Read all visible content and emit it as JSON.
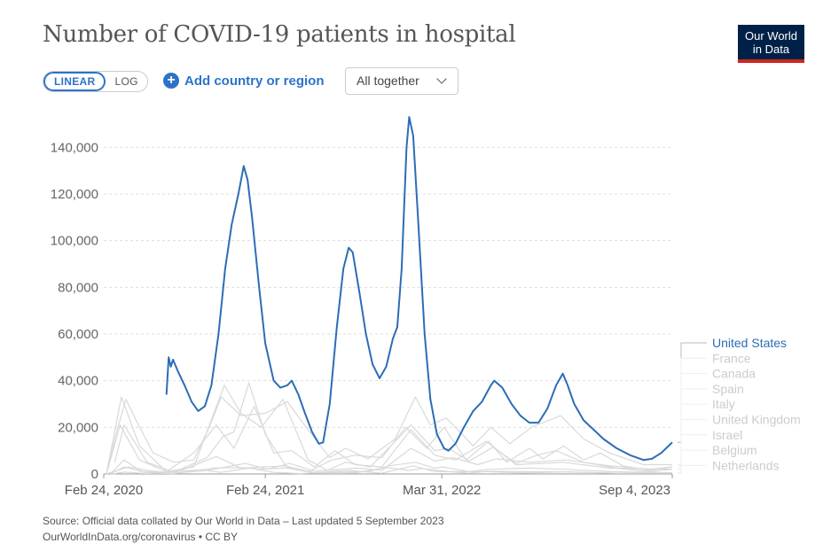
{
  "title": "Number of COVID-19 patients in hospital",
  "logo": {
    "line1": "Our World",
    "line2": "in Data"
  },
  "scale_toggle": {
    "linear": "LINEAR",
    "log": "LOG",
    "selected": "linear"
  },
  "add_button": {
    "label": "Add country or region",
    "icon": "plus-circle-icon"
  },
  "dropdown": {
    "value": "All together",
    "icon": "chevron-down-icon"
  },
  "source": {
    "line1": "Source: Official data collated by Our World in Data – Last updated 5 September 2023",
    "line2": "OurWorldInData.org/coronavirus • CC BY"
  },
  "colors": {
    "highlight": "#2c6db5",
    "muted": "#d9d9d9",
    "grid": "#dddddd",
    "text": "#666666"
  },
  "chart_data": {
    "type": "line",
    "title": "Number of COVID-19 patients in hospital",
    "xlabel": "",
    "ylabel": "",
    "x_range": [
      "2020-02-24",
      "2023-09-04"
    ],
    "ylim": [
      0,
      150000
    ],
    "y_ticks": [
      0,
      20000,
      40000,
      60000,
      80000,
      100000,
      120000,
      140000
    ],
    "y_tick_labels": [
      "0",
      "20,000",
      "40,000",
      "60,000",
      "80,000",
      "100,000",
      "120,000",
      "140,000"
    ],
    "x_ticks": [
      "2020-02-24",
      "2021-02-24",
      "2022-03-31",
      "2023-09-04"
    ],
    "x_tick_labels": [
      "Feb 24, 2020",
      "Feb 24, 2021",
      "Mar 31, 2022",
      "Sep 4, 2023"
    ],
    "grid": "horizontal-dashed",
    "legend": "right",
    "highlighted_series": "United States",
    "series": [
      {
        "name": "United States",
        "points": [
          [
            "2020-07-15",
            34000
          ],
          [
            "2020-07-20",
            50000
          ],
          [
            "2020-07-25",
            46000
          ],
          [
            "2020-07-30",
            49000
          ],
          [
            "2020-08-10",
            44000
          ],
          [
            "2020-08-25",
            38000
          ],
          [
            "2020-09-10",
            31000
          ],
          [
            "2020-09-25",
            27000
          ],
          [
            "2020-10-10",
            29000
          ],
          [
            "2020-10-25",
            38000
          ],
          [
            "2020-11-10",
            60000
          ],
          [
            "2020-11-25",
            88000
          ],
          [
            "2020-12-10",
            107000
          ],
          [
            "2020-12-25",
            120000
          ],
          [
            "2021-01-06",
            132000
          ],
          [
            "2021-01-15",
            126000
          ],
          [
            "2021-01-25",
            110000
          ],
          [
            "2021-02-10",
            80000
          ],
          [
            "2021-02-24",
            56000
          ],
          [
            "2021-03-15",
            40000
          ],
          [
            "2021-03-30",
            37000
          ],
          [
            "2021-04-15",
            38000
          ],
          [
            "2021-04-25",
            40000
          ],
          [
            "2021-05-10",
            34000
          ],
          [
            "2021-05-25",
            26000
          ],
          [
            "2021-06-10",
            18000
          ],
          [
            "2021-06-25",
            13000
          ],
          [
            "2021-07-05",
            13500
          ],
          [
            "2021-07-20",
            30000
          ],
          [
            "2021-08-05",
            63000
          ],
          [
            "2021-08-20",
            88000
          ],
          [
            "2021-09-01",
            97000
          ],
          [
            "2021-09-10",
            95000
          ],
          [
            "2021-09-25",
            78000
          ],
          [
            "2021-10-10",
            60000
          ],
          [
            "2021-10-25",
            47000
          ],
          [
            "2021-11-10",
            41000
          ],
          [
            "2021-11-25",
            46000
          ],
          [
            "2021-12-10",
            58000
          ],
          [
            "2021-12-20",
            63000
          ],
          [
            "2021-12-30",
            88000
          ],
          [
            "2022-01-10",
            140000
          ],
          [
            "2022-01-16",
            153000
          ],
          [
            "2022-01-25",
            145000
          ],
          [
            "2022-02-05",
            110000
          ],
          [
            "2022-02-20",
            60000
          ],
          [
            "2022-03-05",
            32000
          ],
          [
            "2022-03-20",
            17000
          ],
          [
            "2022-04-05",
            11000
          ],
          [
            "2022-04-15",
            10000
          ],
          [
            "2022-05-01",
            13000
          ],
          [
            "2022-05-20",
            20000
          ],
          [
            "2022-06-10",
            27000
          ],
          [
            "2022-06-30",
            31000
          ],
          [
            "2022-07-20",
            38000
          ],
          [
            "2022-07-28",
            40000
          ],
          [
            "2022-08-15",
            37000
          ],
          [
            "2022-09-05",
            30000
          ],
          [
            "2022-09-25",
            25000
          ],
          [
            "2022-10-15",
            22000
          ],
          [
            "2022-11-05",
            22000
          ],
          [
            "2022-11-25",
            28000
          ],
          [
            "2022-12-15",
            38000
          ],
          [
            "2022-12-30",
            43000
          ],
          [
            "2023-01-10",
            38000
          ],
          [
            "2023-01-25",
            30000
          ],
          [
            "2023-02-15",
            23000
          ],
          [
            "2023-03-10",
            19000
          ],
          [
            "2023-04-01",
            15000
          ],
          [
            "2023-05-01",
            11000
          ],
          [
            "2023-06-01",
            8000
          ],
          [
            "2023-07-01",
            6000
          ],
          [
            "2023-07-20",
            6500
          ],
          [
            "2023-08-10",
            9000
          ],
          [
            "2023-09-04",
            13500
          ]
        ]
      },
      {
        "name": "France",
        "points": [
          [
            "2020-03-01",
            0
          ],
          [
            "2020-03-20",
            15000
          ],
          [
            "2020-04-14",
            32000
          ],
          [
            "2020-05-10",
            22000
          ],
          [
            "2020-06-15",
            9000
          ],
          [
            "2020-08-01",
            5000
          ],
          [
            "2020-09-15",
            6000
          ],
          [
            "2020-10-20",
            20000
          ],
          [
            "2020-11-16",
            33000
          ],
          [
            "2020-12-31",
            25000
          ],
          [
            "2021-02-24",
            26000
          ],
          [
            "2021-04-15",
            31000
          ],
          [
            "2021-05-20",
            22000
          ],
          [
            "2021-07-20",
            7000
          ],
          [
            "2021-08-25",
            11000
          ],
          [
            "2021-10-15",
            6500
          ],
          [
            "2021-12-15",
            15000
          ],
          [
            "2022-01-30",
            33000
          ],
          [
            "2022-03-05",
            21000
          ],
          [
            "2022-04-10",
            24000
          ],
          [
            "2022-06-10",
            12000
          ],
          [
            "2022-07-20",
            20000
          ],
          [
            "2022-09-01",
            13000
          ],
          [
            "2022-10-20",
            20000
          ],
          [
            "2022-12-25",
            25000
          ],
          [
            "2023-02-15",
            15000
          ],
          [
            "2023-04-15",
            9000
          ],
          [
            "2023-06-30",
            4000
          ],
          [
            "2023-09-04",
            4000
          ]
        ]
      },
      {
        "name": "Canada",
        "points": [
          [
            "2020-03-01",
            0
          ],
          [
            "2020-04-20",
            3000
          ],
          [
            "2020-06-01",
            1500
          ],
          [
            "2020-08-01",
            300
          ],
          [
            "2020-10-15",
            1500
          ],
          [
            "2021-01-10",
            4500
          ],
          [
            "2021-03-01",
            2000
          ],
          [
            "2021-04-20",
            4500
          ],
          [
            "2021-06-15",
            1200
          ],
          [
            "2021-09-20",
            2500
          ],
          [
            "2021-11-15",
            1500
          ],
          [
            "2022-01-20",
            11000
          ],
          [
            "2022-03-15",
            5500
          ],
          [
            "2022-04-25",
            7000
          ],
          [
            "2022-06-20",
            4000
          ],
          [
            "2022-08-01",
            6500
          ],
          [
            "2022-10-15",
            5000
          ],
          [
            "2023-01-05",
            6000
          ],
          [
            "2023-04-15",
            3500
          ],
          [
            "2023-07-15",
            2000
          ],
          [
            "2023-09-04",
            3000
          ]
        ]
      },
      {
        "name": "Spain",
        "points": [
          [
            "2020-03-01",
            0
          ],
          [
            "2020-04-01",
            21000
          ],
          [
            "2020-05-15",
            6000
          ],
          [
            "2020-07-15",
            1000
          ],
          [
            "2020-09-15",
            9000
          ],
          [
            "2020-11-05",
            21000
          ],
          [
            "2020-12-15",
            11000
          ],
          [
            "2021-01-30",
            29000
          ],
          [
            "2021-03-15",
            9000
          ],
          [
            "2021-04-25",
            10000
          ],
          [
            "2021-06-15",
            3000
          ],
          [
            "2021-08-01",
            10000
          ],
          [
            "2021-09-15",
            4000
          ],
          [
            "2021-11-15",
            3000
          ],
          [
            "2022-01-20",
            19000
          ],
          [
            "2022-03-15",
            8000
          ],
          [
            "2022-05-01",
            6000
          ],
          [
            "2022-07-10",
            14000
          ],
          [
            "2022-09-15",
            4000
          ],
          [
            "2022-12-31",
            5000
          ],
          [
            "2023-04-15",
            2500
          ],
          [
            "2023-09-04",
            2000
          ]
        ]
      },
      {
        "name": "Italy",
        "points": [
          [
            "2020-03-01",
            0
          ],
          [
            "2020-04-04",
            33000
          ],
          [
            "2020-05-15",
            12000
          ],
          [
            "2020-07-15",
            1000
          ],
          [
            "2020-09-15",
            3000
          ],
          [
            "2020-11-23",
            38000
          ],
          [
            "2020-12-31",
            26000
          ],
          [
            "2021-02-15",
            20000
          ],
          [
            "2021-04-05",
            32000
          ],
          [
            "2021-06-01",
            6000
          ],
          [
            "2021-07-15",
            1500
          ],
          [
            "2021-08-25",
            5000
          ],
          [
            "2021-10-20",
            3000
          ],
          [
            "2022-01-20",
            21000
          ],
          [
            "2022-03-15",
            10000
          ],
          [
            "2022-04-15",
            11000
          ],
          [
            "2022-06-01",
            5500
          ],
          [
            "2022-07-25",
            11500
          ],
          [
            "2022-09-15",
            4500
          ],
          [
            "2022-11-01",
            8000
          ],
          [
            "2022-12-15",
            10000
          ],
          [
            "2023-02-15",
            5000
          ],
          [
            "2023-05-01",
            2500
          ],
          [
            "2023-07-15",
            1000
          ],
          [
            "2023-09-04",
            2000
          ]
        ]
      },
      {
        "name": "United Kingdom",
        "points": [
          [
            "2020-03-20",
            5000
          ],
          [
            "2020-04-10",
            21000
          ],
          [
            "2020-06-01",
            5000
          ],
          [
            "2020-08-01",
            800
          ],
          [
            "2020-10-15",
            7000
          ],
          [
            "2020-11-20",
            16000
          ],
          [
            "2020-12-15",
            18000
          ],
          [
            "2021-01-18",
            39000
          ],
          [
            "2021-02-24",
            17000
          ],
          [
            "2021-04-15",
            2500
          ],
          [
            "2021-06-01",
            900
          ],
          [
            "2021-07-25",
            6000
          ],
          [
            "2021-09-15",
            8000
          ],
          [
            "2021-11-15",
            7000
          ],
          [
            "2022-01-08",
            20000
          ],
          [
            "2022-02-25",
            11000
          ],
          [
            "2022-04-05",
            20000
          ],
          [
            "2022-05-25",
            6000
          ],
          [
            "2022-07-15",
            14000
          ],
          [
            "2022-08-25",
            5000
          ],
          [
            "2022-10-15",
            11000
          ],
          [
            "2022-11-15",
            6500
          ],
          [
            "2023-01-01",
            12000
          ],
          [
            "2023-02-15",
            6000
          ],
          [
            "2023-03-25",
            9000
          ],
          [
            "2023-05-15",
            3500
          ],
          [
            "2023-07-15",
            1500
          ],
          [
            "2023-09-04",
            3000
          ]
        ]
      },
      {
        "name": "Israel",
        "points": [
          [
            "2020-03-15",
            0
          ],
          [
            "2020-04-10",
            800
          ],
          [
            "2020-06-01",
            100
          ],
          [
            "2020-07-20",
            900
          ],
          [
            "2020-10-01",
            1800
          ],
          [
            "2020-11-15",
            700
          ],
          [
            "2021-01-20",
            2500
          ],
          [
            "2021-03-15",
            700
          ],
          [
            "2021-05-15",
            150
          ],
          [
            "2021-09-01",
            1500
          ],
          [
            "2021-11-15",
            300
          ],
          [
            "2022-01-25",
            3500
          ],
          [
            "2022-03-15",
            1000
          ],
          [
            "2022-07-10",
            1000
          ],
          [
            "2022-10-01",
            400
          ],
          [
            "2023-01-10",
            900
          ],
          [
            "2023-05-01",
            300
          ],
          [
            "2023-09-04",
            500
          ]
        ]
      },
      {
        "name": "Belgium",
        "points": [
          [
            "2020-03-10",
            0
          ],
          [
            "2020-04-10",
            6000
          ],
          [
            "2020-05-20",
            1000
          ],
          [
            "2020-08-01",
            300
          ],
          [
            "2020-11-05",
            7500
          ],
          [
            "2020-12-31",
            2500
          ],
          [
            "2021-04-10",
            3500
          ],
          [
            "2021-06-15",
            500
          ],
          [
            "2021-10-15",
            1000
          ],
          [
            "2021-12-01",
            3500
          ],
          [
            "2022-01-30",
            5000
          ],
          [
            "2022-03-15",
            2500
          ],
          [
            "2022-04-01",
            3000
          ],
          [
            "2022-06-01",
            1000
          ],
          [
            "2022-07-15",
            2000
          ],
          [
            "2022-10-15",
            2500
          ],
          [
            "2022-12-31",
            2000
          ],
          [
            "2023-04-15",
            1000
          ],
          [
            "2023-09-04",
            500
          ]
        ]
      },
      {
        "name": "Netherlands",
        "points": [
          [
            "2020-03-10",
            0
          ],
          [
            "2020-04-10",
            3000
          ],
          [
            "2020-06-01",
            400
          ],
          [
            "2020-08-01",
            100
          ],
          [
            "2020-11-01",
            2600
          ],
          [
            "2020-12-31",
            2700
          ],
          [
            "2021-02-15",
            2000
          ],
          [
            "2021-04-25",
            2700
          ],
          [
            "2021-06-15",
            500
          ],
          [
            "2021-08-01",
            700
          ],
          [
            "2021-09-15",
            400
          ],
          [
            "2021-11-25",
            2800
          ],
          [
            "2022-01-15",
            1500
          ],
          [
            "2022-02-15",
            2300
          ],
          [
            "2022-04-15",
            1000
          ],
          [
            "2022-06-01",
            300
          ],
          [
            "2022-07-15",
            1200
          ],
          [
            "2022-10-01",
            1000
          ],
          [
            "2023-01-01",
            900
          ],
          [
            "2023-05-01",
            300
          ],
          [
            "2023-09-04",
            300
          ]
        ]
      }
    ]
  }
}
